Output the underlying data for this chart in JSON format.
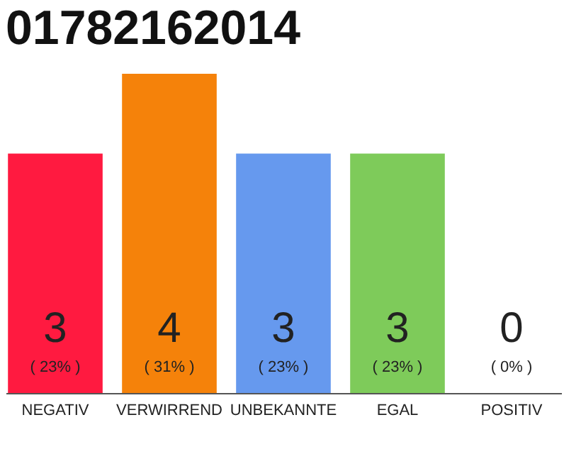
{
  "chart_data": {
    "type": "bar",
    "title": "01782162014",
    "categories": [
      "NEGATIV",
      "VERWIRREND",
      "UNBEKANNTE",
      "EGAL",
      "POSITIV"
    ],
    "values": [
      3,
      4,
      3,
      3,
      0
    ],
    "colors": [
      "#ff1a40",
      "#f5820a",
      "#6699ee",
      "#7ecb5a",
      "#cccccc"
    ],
    "ylim": [
      0,
      4
    ],
    "data_labels": true,
    "annotations": [
      "( 23% )",
      "( 31% )",
      "( 23% )",
      "( 23% )",
      "( 0% )"
    ],
    "tick_labels": "x"
  }
}
